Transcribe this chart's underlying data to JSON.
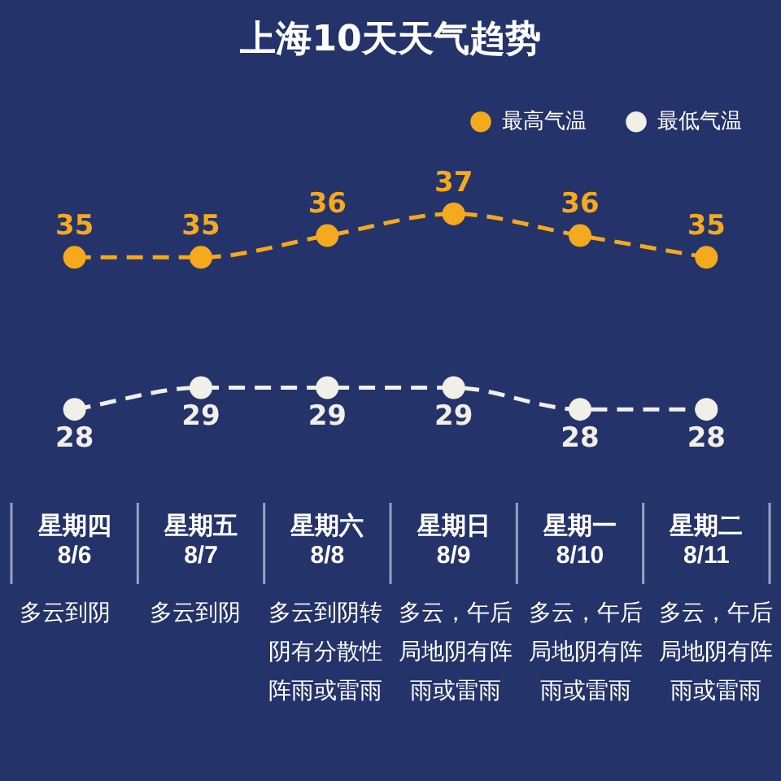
{
  "chart_data": {
    "type": "line",
    "title": "上海10天天气趋势",
    "categories": [
      "星期四 8/6",
      "星期五 8/7",
      "星期六 8/8",
      "星期日 8/9",
      "星期一 8/10",
      "星期二 8/11"
    ],
    "series": [
      {
        "name": "最高气温",
        "color": "#f5a91c",
        "values": [
          35,
          35,
          36,
          37,
          36,
          35
        ]
      },
      {
        "name": "最低气温",
        "color": "#f2efe8",
        "values": [
          28,
          29,
          29,
          29,
          28,
          28
        ]
      }
    ],
    "annotations": [
      "多云到阴",
      "多云到阴",
      "多云到阴转阴有分散性阵雨或雷雨",
      "多云，午后局地阴有阵雨或雷雨",
      "多云，午后局地阴有阵雨或雷雨",
      "多云，午后局地阴有阵雨或雷雨"
    ],
    "data_labels": true,
    "legend": "top right",
    "marker": "circle",
    "line_style": "dashed",
    "grid": false
  }
}
